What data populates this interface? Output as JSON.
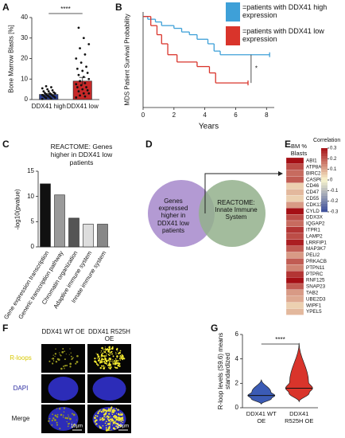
{
  "chart_data": [
    {
      "label": "A",
      "type": "bar",
      "ylabel": "Bone Marrow Blasts [%]",
      "categories": [
        "DDX41 high",
        "DDX41 low"
      ],
      "values": [
        2.5,
        9
      ],
      "errors": [
        0.5,
        1.8
      ],
      "colors": [
        "#2b3f8f",
        "#c62828"
      ],
      "points": [
        [
          0.3,
          0.5,
          0.8,
          1,
          1,
          1.2,
          1.5,
          1.5,
          1.8,
          2,
          2,
          2.2,
          2.5,
          2.5,
          3,
          3,
          3.2,
          3.5,
          4,
          4,
          4.5,
          5,
          5.5,
          6,
          6.5
        ],
        [
          1,
          1.5,
          2,
          3,
          3,
          4,
          4.5,
          5,
          6,
          6,
          7,
          7.5,
          8,
          9,
          10,
          11,
          12,
          13,
          14,
          15,
          16,
          18,
          20,
          22,
          25,
          27,
          30,
          35
        ]
      ],
      "ylim": [
        0,
        40
      ],
      "yticks": [
        0,
        10,
        20,
        30,
        40
      ],
      "annotation": "****"
    },
    {
      "label": "B",
      "type": "step",
      "ylabel": "MDS Patient Survival Probability",
      "xlabel": "Years",
      "xlim": [
        0,
        8.5
      ],
      "xticks": [
        0,
        2,
        4,
        6,
        8
      ],
      "ylim": [
        0,
        1.05
      ],
      "series": [
        {
          "name": "=patients with DDX41 high expression",
          "color": "#3ea0d8",
          "x": [
            0,
            0.3,
            0.8,
            1.2,
            2,
            2.5,
            3,
            3.5,
            4.2,
            4.6,
            5,
            8.2
          ],
          "values": [
            1,
            0.97,
            0.94,
            0.9,
            0.87,
            0.83,
            0.8,
            0.75,
            0.7,
            0.62,
            0.58,
            0.58
          ]
        },
        {
          "name": "=patients with DDX41 low expression",
          "color": "#d9342b",
          "x": [
            0,
            0.5,
            0.9,
            1.2,
            1.6,
            2.2,
            3.5,
            4.3,
            4.7,
            6.8
          ],
          "values": [
            1,
            0.9,
            0.8,
            0.7,
            0.58,
            0.5,
            0.45,
            0.38,
            0.27,
            0.27
          ]
        }
      ],
      "annotation": "*"
    },
    {
      "label": "C",
      "type": "bar",
      "title": "REACTOME: Genes higher in DDX41 low patients",
      "ylabel": "-log10(pvalue)",
      "categories": [
        "Gene expression transcription",
        "Generic transcription pathway",
        "Chromatin organization",
        "Adaptive immune system",
        "Innate immune system"
      ],
      "values": [
        12.5,
        10.3,
        5.7,
        4.5,
        4.5
      ],
      "colors": [
        "#111111",
        "#9a9a9a",
        "#555555",
        "#dddddd",
        "#888888"
      ],
      "ylim": [
        0,
        15
      ],
      "yticks": [
        0,
        5,
        10,
        15
      ]
    },
    {
      "label": "E",
      "type": "heatmap",
      "title": "BM % Blasts",
      "legend_title": "Correlation",
      "categories": [
        "ABI1",
        "ATP8A1",
        "BIRC2",
        "CASP8",
        "CD46",
        "CD47",
        "CD55",
        "CDK13",
        "CYLD",
        "DDX3X",
        "IQGAP2",
        "ITPR1",
        "LAMP2",
        "LRRFIP1",
        "MAP3K7",
        "PELI2",
        "PRKACB",
        "PTPN11",
        "PTPRC",
        "RNF125",
        "SNAP23",
        "TAB2",
        "UBE2D3",
        "WIPF1",
        "YPEL5"
      ],
      "values": [
        0.3,
        0.22,
        0.18,
        0.2,
        0.05,
        0.08,
        0.05,
        0.12,
        0.3,
        0.22,
        0.18,
        0.25,
        0.22,
        0.28,
        0.2,
        0.12,
        0.2,
        0.15,
        0.25,
        0.3,
        0.2,
        0.12,
        0.1,
        0.05,
        0.08
      ],
      "colors": [
        "#3a4c9a",
        "#faf6cf",
        "#a50f15"
      ],
      "clim": [
        -0.3,
        0.3
      ],
      "cticks": [
        -0.3,
        -0.2,
        -0.1,
        0,
        0.1,
        0.2,
        0.3
      ]
    },
    {
      "label": "G",
      "type": "violin",
      "ylabel": "R-loop levels (S9.6) means standardized",
      "categories": [
        "DDX41 WT OE",
        "DDX41 R525H OE"
      ],
      "colors": [
        "#3b5bb5",
        "#d9342b"
      ],
      "min": [
        0.3,
        0.5
      ],
      "q1": [
        0.75,
        1.2
      ],
      "median": [
        1.0,
        1.6
      ],
      "q3": [
        1.3,
        2.1
      ],
      "max": [
        2.3,
        5.3
      ],
      "ylim": [
        0,
        6
      ],
      "yticks": [
        0,
        2,
        4,
        6
      ],
      "annotation": "****"
    }
  ],
  "diagram": {
    "label": "D",
    "nodes": [
      {
        "label": "Genes expressed higher in DDX41 low patients"
      },
      {
        "label": "REACTOME: Innate Immune System"
      }
    ]
  },
  "images": {
    "label": "F",
    "columns": [
      "DDX41 WT OE",
      "DDX41 R525H OE"
    ],
    "rows": [
      "R-loops",
      "DAPI",
      "Merge"
    ],
    "scale_bars": [
      "10µm",
      "10µm"
    ]
  }
}
